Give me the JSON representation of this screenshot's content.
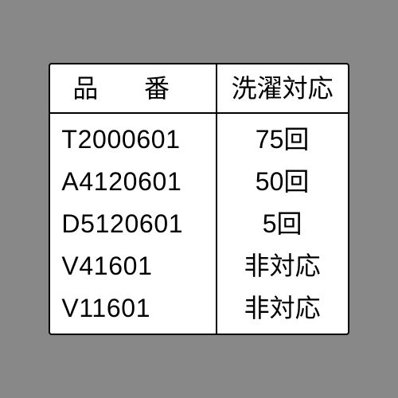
{
  "table": {
    "columns": [
      "品番",
      "洗濯対応"
    ],
    "rows": [
      [
        "T2000601",
        "75回"
      ],
      [
        "A4120601",
        "50回"
      ],
      [
        "D5120601",
        "5回"
      ],
      [
        "V41601",
        "非対応"
      ],
      [
        "V11601",
        "非対応"
      ]
    ],
    "border_color": "#000000",
    "background_color": "#ffffff",
    "page_background": "#888888",
    "header_fontsize": 32,
    "cell_fontsize": 32,
    "text_color": "#000000"
  }
}
